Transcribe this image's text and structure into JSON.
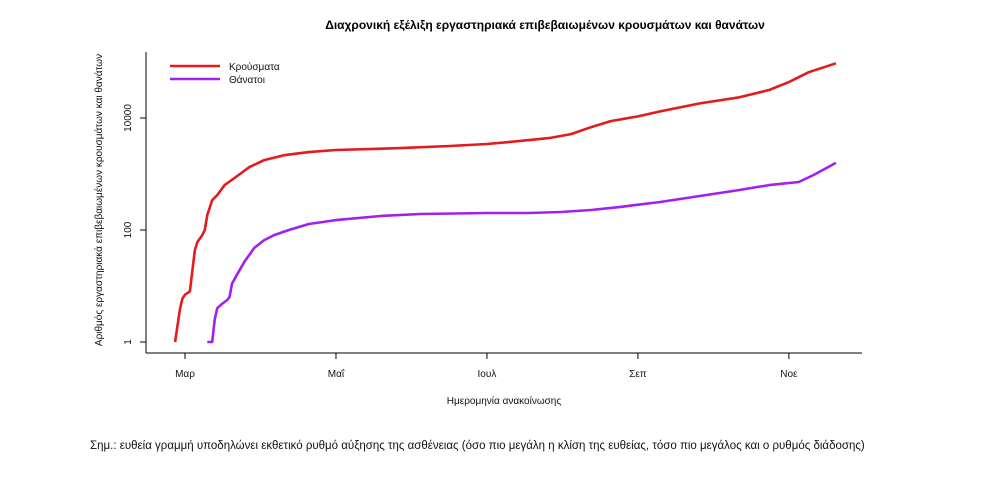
{
  "chart_data": {
    "type": "line",
    "title": "Διαχρονική εξέλιξη εργαστηριακά επιβεβαιωμένων κρουσμάτων και θανάτων",
    "xlabel": "Ημερομηνία ανακοίνωσης",
    "ylabel": "Αριθμός εργαστηριακά επιβεβαιωμένων κρουσμάτων και θανάτων",
    "x_units": "days since 1 March",
    "y_scale": "log10",
    "ylim": [
      1,
      100000
    ],
    "x_ticks": [
      {
        "label": "Μαρ",
        "day": 0
      },
      {
        "label": "Μαΐ",
        "day": 61
      },
      {
        "label": "Ιουλ",
        "day": 122
      },
      {
        "label": "Σεπ",
        "day": 183
      },
      {
        "label": "Νοε",
        "day": 244
      }
    ],
    "y_ticks": [
      {
        "label": "1",
        "value": 1
      },
      {
        "label": "100",
        "value": 100
      },
      {
        "label": "10000",
        "value": 10000
      }
    ],
    "legend_position": "top-left",
    "series": [
      {
        "name": "Κρούσματα",
        "color": "#e41a1c",
        "x": [
          -4,
          -3,
          -2,
          -1,
          0,
          2,
          3,
          4,
          5,
          7,
          8,
          9,
          11,
          13,
          16,
          20,
          26,
          32,
          40,
          50,
          61,
          87,
          107,
          122,
          135,
          147,
          156,
          164,
          172,
          183,
          192,
          208,
          224,
          236,
          244,
          252,
          263
        ],
        "y": [
          1,
          2,
          4,
          6,
          7,
          8,
          19,
          44,
          61,
          81,
          100,
          185,
          341,
          420,
          633,
          849,
          1330,
          1770,
          2170,
          2460,
          2680,
          2900,
          3160,
          3430,
          3870,
          4380,
          5150,
          6850,
          8790,
          10700,
          13100,
          18200,
          23400,
          31600,
          43700,
          65700,
          94800
        ]
      },
      {
        "name": "Θάνατοι",
        "color": "#a020f0",
        "x": [
          9,
          11,
          12,
          13,
          15,
          17,
          18,
          19,
          21,
          24,
          28,
          32,
          36,
          42,
          50,
          61,
          79,
          95,
          122,
          139,
          152,
          164,
          176,
          192,
          208,
          224,
          236,
          248,
          254,
          263
        ],
        "y": [
          1,
          1,
          2.5,
          4,
          4.8,
          5.6,
          6.4,
          11,
          16,
          27,
          48,
          66,
          81,
          100,
          128,
          150,
          178,
          193,
          201,
          201,
          210,
          228,
          258,
          316,
          405,
          519,
          634,
          720,
          959,
          1580
        ]
      }
    ]
  },
  "note": "Σημ.: ευθεία γραμμή υποδηλώνει εκθετικό ρυθμό αύξησης της ασθένειας (όσο πιο μεγάλη η κλίση της ευθείας, τόσο πιο μεγάλος και ο ρυθμός διάδοσης)"
}
